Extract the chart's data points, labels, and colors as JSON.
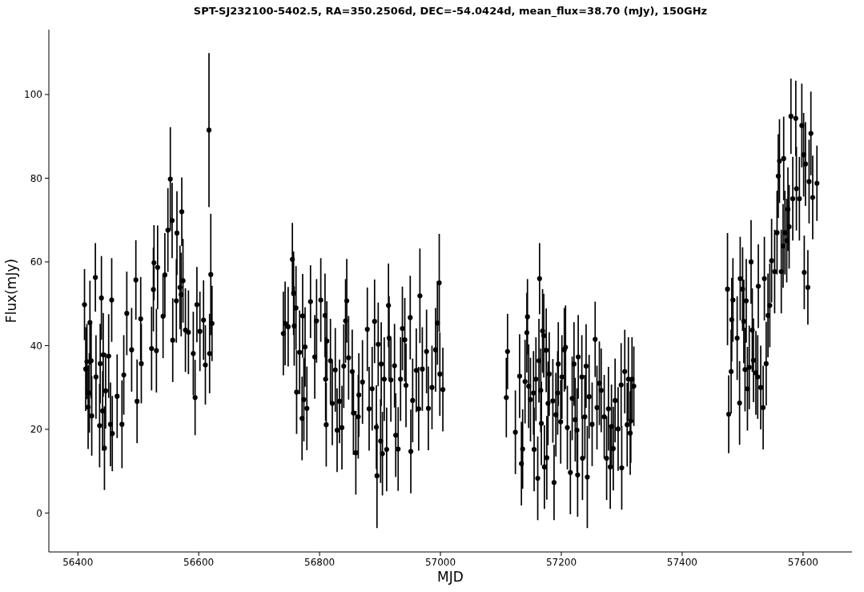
{
  "chart_data": {
    "type": "scatter",
    "title": "SPT-SJ232100-5402.5, RA=350.2506d, DEC=-54.0424d, mean_flux=38.70 (mJy), 150GHz",
    "xlabel": "MJD",
    "ylabel": "Flux(mJy)",
    "color": "#000000",
    "marker": "circle",
    "xlim": [
      56352,
      57681
    ],
    "xticks": [
      56400,
      56600,
      56800,
      57000,
      57200,
      57400,
      57600
    ],
    "ylim": [
      -9.3,
      115.5
    ],
    "yticks": [
      0,
      20,
      40,
      60,
      80,
      100
    ],
    "x": [
      56411,
      56413,
      56415,
      56417,
      56419,
      56420,
      56422,
      56423,
      56429,
      56430,
      56436,
      56437,
      56439,
      56441,
      56442,
      56444,
      56446,
      56451,
      56454,
      56456,
      56457,
      56465,
      56473,
      56476,
      56481,
      56489,
      56496,
      56498,
      56504,
      56505,
      56522,
      56525,
      56526,
      56530,
      56532,
      56541,
      56544,
      56549,
      56553,
      56556,
      56557,
      56563,
      56564,
      56569,
      56571,
      56572,
      56574,
      56578,
      56583,
      56591,
      56594,
      56597,
      56602,
      56608,
      56611,
      56617,
      56618,
      56620,
      56622,
      56740,
      56743,
      56748,
      56755,
      56757,
      56758,
      56761,
      56762,
      56767,
      56771,
      56772,
      56774,
      56776,
      56779,
      56785,
      56792,
      56795,
      56802,
      56809,
      56810,
      56811,
      56812,
      56818,
      56821,
      56826,
      56829,
      56833,
      56837,
      56840,
      56843,
      56845,
      56848,
      56854,
      56856,
      56860,
      56864,
      56865,
      56871,
      56879,
      56882,
      56887,
      56891,
      56894,
      56895,
      56897,
      56901,
      56902,
      56904,
      56907,
      56911,
      56914,
      56915,
      56918,
      56924,
      56926,
      56930,
      56934,
      56937,
      56941,
      56943,
      56950,
      56951,
      56954,
      56960,
      56964,
      56966,
      56970,
      56977,
      56980,
      56986,
      56992,
      56995,
      56998,
      56999,
      57004,
      57109,
      57111,
      57124,
      57131,
      57134,
      57136,
      57140,
      57143,
      57144,
      57146,
      57149,
      57154,
      57155,
      57158,
      57161,
      57163,
      57164,
      57166,
      57167,
      57169,
      57171,
      57172,
      57175,
      57176,
      57178,
      57180,
      57186,
      57188,
      57191,
      57194,
      57195,
      57199,
      57201,
      57205,
      57207,
      57210,
      57215,
      57218,
      57221,
      57223,
      57226,
      57227,
      57228,
      57234,
      57235,
      57239,
      57241,
      57243,
      57246,
      57251,
      57256,
      57259,
      57263,
      57266,
      57271,
      57275,
      57278,
      57281,
      57283,
      57286,
      57289,
      57294,
      57299,
      57300,
      57305,
      57309,
      57311,
      57314,
      57315,
      57317,
      57320,
      57475,
      57477,
      57481,
      57482,
      57484,
      57491,
      57495,
      57496,
      57500,
      57502,
      57504,
      57506,
      57508,
      57511,
      57514,
      57516,
      57518,
      57522,
      57525,
      57526,
      57530,
      57534,
      57536,
      57539,
      57542,
      57545,
      57548,
      57553,
      57557,
      57559,
      57561,
      57564,
      57567,
      57568,
      57570,
      57573,
      57575,
      57577,
      57580,
      57583,
      57588,
      57589,
      57594,
      57598,
      57601,
      57602,
      57604,
      57608,
      57610,
      57613,
      57616,
      57623
    ],
    "values": [
      49.8,
      34.4,
      36.2,
      25.3,
      28.7,
      45.5,
      36.4,
      23.2,
      56.3,
      32.5,
      20.9,
      35.7,
      51.4,
      24.4,
      37.8,
      15.5,
      29.2,
      37.5,
      21.2,
      50.9,
      19.0,
      27.9,
      21.2,
      33.0,
      47.7,
      39.0,
      55.7,
      26.7,
      46.4,
      35.7,
      39.3,
      53.4,
      59.8,
      38.8,
      58.7,
      47.0,
      56.9,
      67.6,
      79.8,
      69.9,
      41.3,
      50.7,
      66.9,
      53.9,
      52.2,
      72.0,
      55.5,
      43.7,
      43.2,
      38.1,
      27.6,
      49.8,
      43.4,
      46.1,
      35.4,
      91.5,
      38.1,
      57.0,
      45.3,
      42.9,
      45.3,
      44.5,
      60.6,
      52.5,
      44.7,
      49.0,
      28.9,
      38.4,
      22.6,
      47.1,
      27.1,
      39.7,
      25.0,
      50.5,
      37.3,
      45.9,
      50.9,
      47.2,
      32.0,
      21.1,
      41.1,
      36.4,
      26.2,
      34.2,
      19.8,
      26.7,
      20.4,
      35.1,
      45.9,
      50.7,
      37.1,
      33.8,
      23.9,
      14.4,
      23.0,
      28.2,
      31.3,
      43.9,
      24.9,
      29.7,
      45.8,
      20.5,
      8.9,
      40.3,
      17.2,
      35.6,
      14.2,
      32.0,
      15.2,
      49.6,
      41.8,
      31.8,
      35.2,
      18.6,
      15.3,
      32.0,
      44.1,
      41.4,
      30.5,
      46.7,
      14.7,
      26.9,
      34.1,
      24.9,
      51.9,
      34.4,
      38.6,
      25.0,
      30.0,
      39.0,
      45.4,
      55.0,
      33.2,
      29.5,
      27.6,
      38.6,
      19.3,
      32.7,
      11.8,
      15.3,
      31.4,
      43.1,
      46.9,
      30.3,
      27.1,
      28.7,
      15.2,
      32.0,
      8.3,
      36.4,
      56.0,
      29.3,
      21.4,
      43.5,
      42.4,
      11.0,
      38.9,
      13.2,
      26.2,
      33.2,
      26.8,
      7.3,
      23.5,
      28.7,
      35.6,
      21.8,
      32.5,
      39.0,
      39.6,
      20.4,
      9.7,
      27.4,
      35.6,
      22.3,
      19.8,
      9.1,
      37.3,
      32.5,
      13.1,
      23.0,
      35.1,
      8.6,
      27.8,
      21.2,
      41.5,
      25.2,
      31.0,
      29.3,
      23.0,
      13.1,
      24.9,
      11.0,
      20.7,
      15.4,
      26.9,
      20.1,
      30.6,
      10.8,
      33.8,
      21.1,
      32.0,
      19.1,
      22.0,
      32.0,
      30.3,
      53.5,
      23.6,
      33.8,
      46.2,
      50.9,
      41.8,
      26.3,
      56.0,
      53.5,
      45.8,
      34.3,
      50.7,
      29.7,
      34.8,
      60.0,
      43.7,
      36.5,
      33.5,
      32.5,
      54.2,
      30.0,
      25.2,
      56.0,
      35.7,
      47.2,
      49.6,
      60.3,
      57.7,
      67.0,
      80.5,
      84.1,
      57.7,
      63.8,
      84.7,
      67.0,
      65.1,
      72.6,
      68.4,
      94.8,
      75.1,
      94.3,
      77.5,
      75.1,
      92.6,
      85.6,
      57.5,
      83.4,
      53.9,
      79.2,
      90.7,
      75.4,
      78.8
    ],
    "errors": [
      8.5,
      10,
      9,
      10,
      9.5,
      10,
      9,
      9.5,
      8.2,
      10,
      10,
      9.5,
      10,
      9.5,
      10,
      10,
      9,
      10,
      10,
      10,
      9,
      10,
      10.5,
      9.5,
      10,
      10,
      9.5,
      10,
      10,
      9.5,
      10,
      10,
      9,
      10,
      10,
      10,
      10,
      10,
      12.4,
      9,
      10,
      10,
      10,
      10,
      10,
      8.2,
      10,
      10,
      10,
      10,
      9,
      9,
      9.5,
      9.5,
      9.5,
      18.4,
      9.5,
      14.5,
      9,
      10,
      10,
      9.5,
      8.7,
      10,
      9.5,
      10,
      10,
      10,
      10,
      10,
      10,
      9.5,
      10,
      8.7,
      10,
      10,
      10,
      10,
      10,
      10,
      9.5,
      10,
      10,
      10,
      10,
      10,
      10,
      10,
      10,
      10,
      10,
      10,
      10,
      10,
      10,
      10,
      10,
      10,
      10,
      10,
      10,
      10,
      12.5,
      10,
      10,
      10,
      10,
      10,
      10,
      10,
      10,
      10,
      10,
      10,
      10,
      10,
      10,
      10,
      10,
      10,
      10,
      10,
      10,
      10,
      11.3,
      10,
      10,
      10,
      10,
      10,
      10,
      11.7,
      10,
      10,
      9.5,
      9,
      10,
      10,
      10,
      9.5,
      10,
      9.5,
      9,
      10,
      10,
      10,
      10,
      10,
      10,
      10,
      8.5,
      10,
      10,
      10,
      10,
      10,
      10,
      10,
      10,
      10,
      10,
      9,
      10,
      10,
      10,
      10,
      10,
      10,
      10,
      10,
      10,
      10,
      10,
      10,
      10,
      10,
      10,
      10,
      10,
      10,
      10,
      12.2,
      10,
      10,
      9,
      10,
      10,
      10,
      10,
      10,
      10,
      10,
      10,
      10,
      10,
      10,
      10,
      10,
      10,
      10,
      10,
      10,
      10,
      10,
      9.5,
      13.4,
      9.3,
      10,
      10,
      10,
      10,
      10,
      10,
      10,
      10,
      10,
      10,
      10,
      10,
      10,
      10,
      10,
      10,
      10,
      10,
      10,
      10,
      10,
      10,
      10,
      10,
      10,
      10,
      10,
      10,
      10,
      10,
      10,
      10,
      10,
      10,
      10,
      10,
      9,
      10,
      9,
      10,
      10,
      10,
      10,
      8.8,
      10,
      8.9,
      10,
      10,
      10,
      9
    ]
  }
}
